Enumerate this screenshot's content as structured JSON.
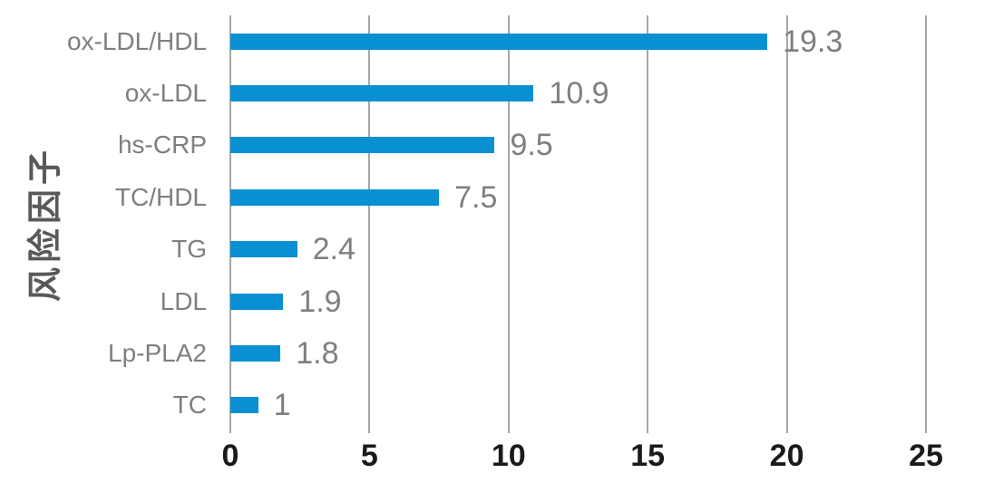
{
  "chart_data": {
    "type": "bar",
    "orientation": "horizontal",
    "title": "",
    "xlabel": "",
    "ylabel": "风险因子",
    "categories": [
      "ox-LDL/HDL",
      "ox-LDL",
      "hs-CRP",
      "TC/HDL",
      "TG",
      "LDL",
      "Lp-PLA2",
      "TC"
    ],
    "values": [
      19.3,
      10.9,
      9.5,
      7.5,
      2.4,
      1.9,
      1.8,
      1
    ],
    "value_labels": [
      "19.3",
      "10.9",
      "9.5",
      "7.5",
      "2.4",
      "1.9",
      "1.8",
      "1"
    ],
    "xlim": [
      0,
      25
    ],
    "xticks": [
      0,
      5,
      10,
      15,
      20,
      25
    ],
    "xtick_labels": [
      "0",
      "5",
      "10",
      "15",
      "20",
      "25"
    ],
    "grid": true,
    "legend_position": "none",
    "colors": {
      "bar": "#0990d3",
      "gridline": "#a6a6a6",
      "category_label": "#7f7f7f",
      "value_label": "#7f7f7f",
      "tick_label": "#1a1a1a",
      "axis_title": "#595959",
      "background": "#ffffff"
    }
  }
}
